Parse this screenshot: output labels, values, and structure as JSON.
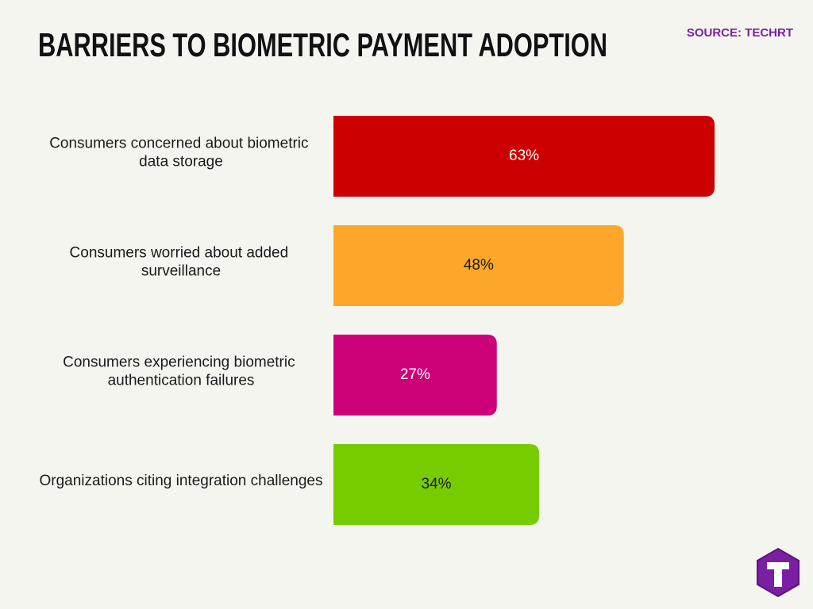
{
  "chart_data": {
    "type": "bar",
    "orientation": "horizontal",
    "title": "BARRIERS TO BIOMETRIC PAYMENT ADOPTION",
    "source": "SOURCE: TECHRT",
    "categories": [
      "Consumers concerned about biometric data storage",
      "Consumers worried about added surveillance",
      "Consumers experiencing biometric authentication failures",
      "Organizations citing integration challenges"
    ],
    "values": [
      63,
      48,
      27,
      34
    ],
    "value_labels": [
      "63%",
      "48%",
      "27%",
      "34%"
    ],
    "colors": [
      "#cc0000",
      "#fca72a",
      "#cc0077",
      "#77cc00"
    ]
  }
}
